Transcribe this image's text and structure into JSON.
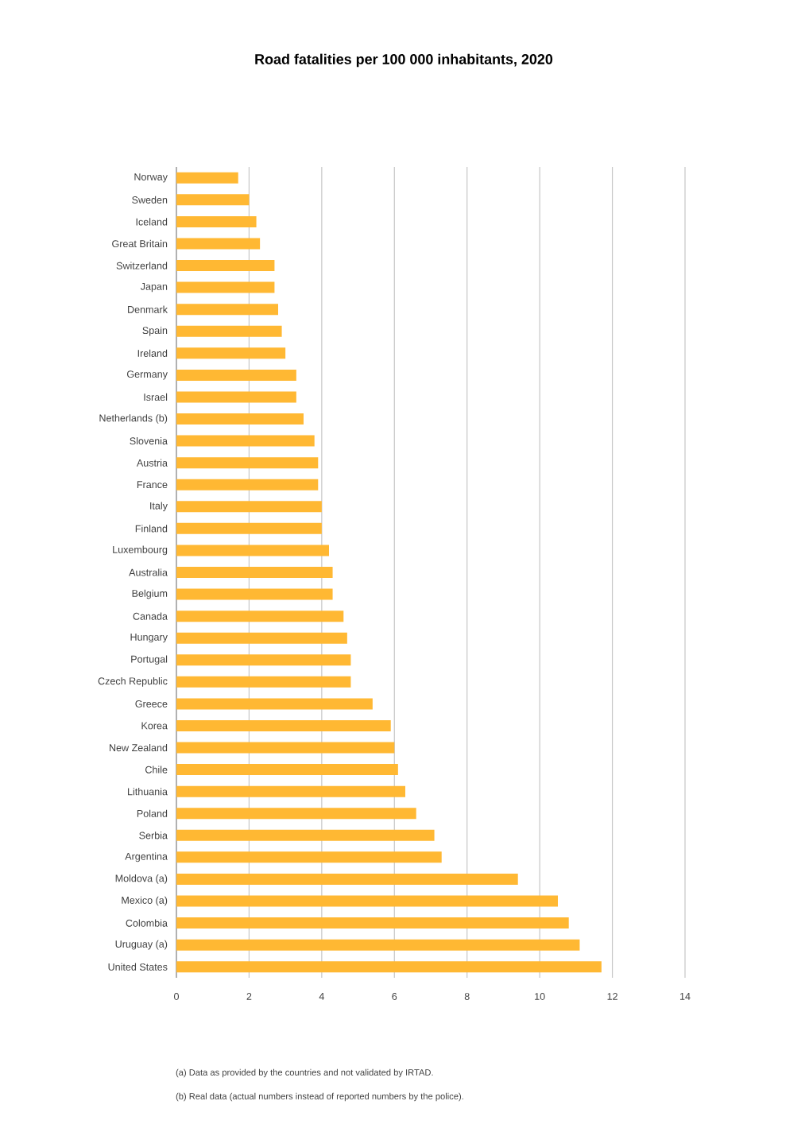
{
  "chart_data": {
    "type": "bar",
    "orientation": "horizontal",
    "title": "Road fatalities per 100 000 inhabitants, 2020",
    "categories": [
      "Norway",
      "Sweden",
      "Iceland",
      "Great Britain",
      "Switzerland",
      "Japan",
      "Denmark",
      "Spain",
      "Ireland",
      "Germany",
      "Israel",
      "Netherlands (b)",
      "Slovenia",
      "Austria",
      "France",
      "Italy",
      "Finland",
      "Luxembourg",
      "Australia",
      "Belgium",
      "Canada",
      "Hungary",
      "Portugal",
      "Czech Republic",
      "Greece",
      "Korea",
      "New Zealand",
      "Chile",
      "Lithuania",
      "Poland",
      "Serbia",
      "Argentina",
      "Moldova (a)",
      "Mexico (a)",
      "Colombia",
      "Uruguay (a)",
      "United States"
    ],
    "values": [
      1.7,
      2.0,
      2.2,
      2.3,
      2.7,
      2.7,
      2.8,
      2.9,
      3.0,
      3.3,
      3.3,
      3.5,
      3.8,
      3.9,
      3.9,
      4.0,
      4.0,
      4.2,
      4.3,
      4.3,
      4.6,
      4.7,
      4.8,
      4.8,
      5.4,
      5.9,
      6.0,
      6.1,
      6.3,
      6.6,
      7.1,
      7.3,
      9.4,
      10.5,
      10.8,
      11.1,
      11.7
    ],
    "color": "#ffb833",
    "xlim": [
      0,
      14
    ],
    "xticks": [
      0,
      2,
      4,
      6,
      8,
      10,
      12,
      14
    ],
    "grid": "x",
    "annotations": [
      "(a) Data as provided by the countries and not validated by IRTAD.",
      "(b) Real data (actual numbers instead of reported numbers by the police)."
    ]
  }
}
